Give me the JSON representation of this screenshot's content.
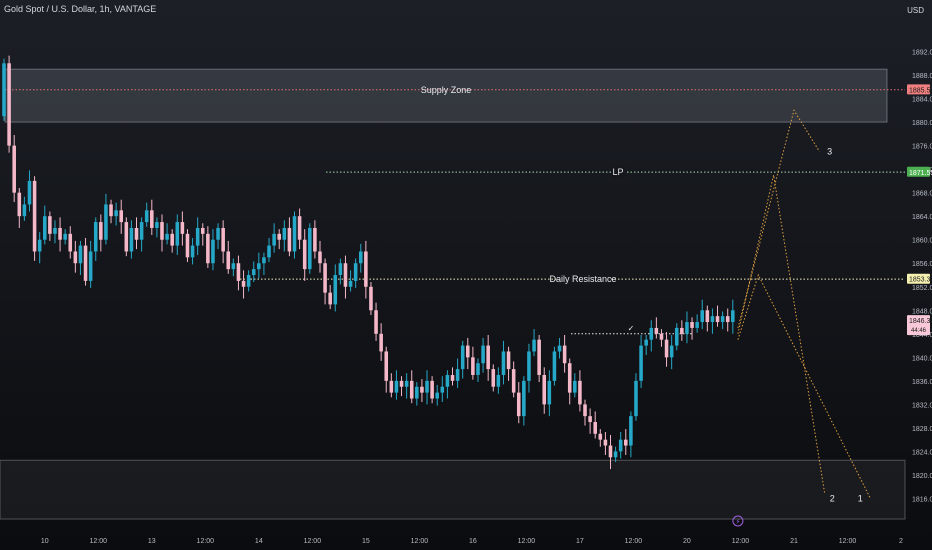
{
  "header": {
    "symbol": "Gold Spot / U.S. Dollar, 1h, VANTAGE",
    "currency": "USD"
  },
  "chart_data": {
    "type": "candlestick",
    "title": "Gold Spot / U.S. Dollar, 1h, VANTAGE",
    "ylim": [
      1812,
      1896
    ],
    "y_ticks": [
      1816,
      1820,
      1824,
      1828,
      1832,
      1836,
      1840,
      1844,
      1848,
      1852,
      1856,
      1860,
      1864,
      1868,
      1872,
      1876,
      1880,
      1884,
      1888,
      1892
    ],
    "x_ticks": [
      "10",
      "12:00",
      "13",
      "12:00",
      "14",
      "12:00",
      "15",
      "12:00",
      "16",
      "12:00",
      "17",
      "12:00",
      "20",
      "12:00",
      "21",
      "12:00",
      "2"
    ],
    "x_tick_slots": [
      8,
      18.5,
      29,
      39.5,
      50,
      60.5,
      71,
      81.5,
      92,
      102.5,
      113,
      123.5,
      134,
      144.5,
      155,
      165.5,
      176
    ],
    "x_range": [
      0,
      176
    ],
    "colors": {
      "up": "#26a8c8",
      "down": "#f4b8c8"
    },
    "closes": [
      1890,
      1876,
      1868,
      1864,
      1866,
      1870,
      1858,
      1860,
      1864,
      1861,
      1862,
      1860,
      1861,
      1858,
      1856,
      1859,
      1853,
      1858,
      1863,
      1860,
      1866,
      1864,
      1865,
      1863,
      1858,
      1862,
      1860,
      1863,
      1865,
      1862,
      1863,
      1860,
      1861,
      1859,
      1863,
      1861,
      1857,
      1859,
      1862,
      1861,
      1856,
      1860,
      1862,
      1858,
      1855,
      1856,
      1853,
      1852,
      1854,
      1855,
      1856,
      1857,
      1859,
      1861,
      1860,
      1862,
      1858,
      1864,
      1860,
      1855,
      1862,
      1858,
      1856,
      1851,
      1849,
      1854,
      1856,
      1852,
      1853,
      1856,
      1858,
      1852,
      1848,
      1844,
      1841,
      1836,
      1834,
      1836,
      1835,
      1836,
      1833,
      1835,
      1834,
      1836,
      1833,
      1834,
      1835,
      1837,
      1836,
      1838,
      1842,
      1840,
      1837,
      1839,
      1842,
      1838,
      1835,
      1837,
      1841,
      1838,
      1834,
      1830,
      1836,
      1841,
      1843,
      1837,
      1832,
      1836,
      1841,
      1842,
      1839,
      1834,
      1836,
      1832,
      1830,
      1829,
      1827,
      1826,
      1825,
      1823,
      1824,
      1826,
      1825,
      1830,
      1836,
      1842,
      1843,
      1845,
      1844,
      1843,
      1840,
      1842,
      1845,
      1844,
      1846,
      1845,
      1846,
      1848,
      1846,
      1847,
      1846,
      1847,
      1846,
      1848
    ],
    "annotations": {
      "supply_zone_label": "Supply Zone",
      "lp_label": "LP",
      "daily_resistance_label": "Daily Resistance",
      "checkmark": "✓",
      "wave_labels": [
        "1",
        "2",
        "3"
      ]
    },
    "levels": {
      "supply_zone": [
        1880,
        1889
      ],
      "supply_mid": 1885.5,
      "lp": 1871.5,
      "daily_resistance": 1853.3,
      "demand_zone": [
        1812.5,
        1822.5
      ],
      "short_line": 1844
    },
    "price_labels": [
      {
        "text": "1885.56",
        "value": 1885.56,
        "bg": "#f08080",
        "fg": "#1a1a1a"
      },
      {
        "text": "1871.55",
        "value": 1871.55,
        "bg": "#4caf50",
        "fg": "#ffffff"
      },
      {
        "text": "1853.37",
        "value": 1853.37,
        "bg": "#f4f0b0",
        "fg": "#1a1a1a"
      },
      {
        "text": "1846.32",
        "value": 1846.32,
        "bg": "#f8c8d8",
        "fg": "#1a1a1a",
        "sub": "44:46"
      }
    ],
    "projections": [
      {
        "points": [
          [
            144,
            1845
          ],
          [
            155,
            1882
          ],
          [
            160,
            1875
          ]
        ]
      },
      {
        "points": [
          [
            144,
            1844
          ],
          [
            151,
            1871
          ],
          [
            161,
            1817
          ]
        ]
      },
      {
        "points": [
          [
            144,
            1843
          ],
          [
            148,
            1854
          ],
          [
            170,
            1816
          ]
        ]
      }
    ],
    "event_marker": "⚡"
  }
}
